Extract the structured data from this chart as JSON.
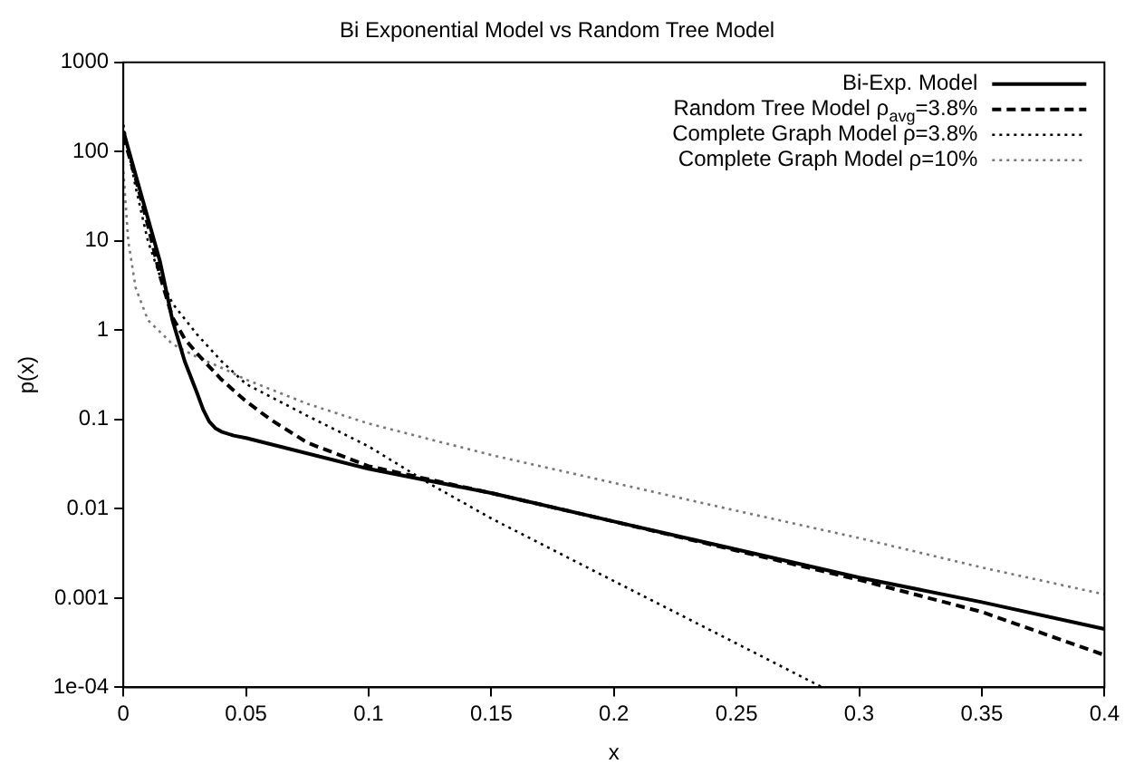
{
  "chart_data": {
    "type": "line",
    "title": "Bi Exponential Model vs Random Tree Model",
    "xlabel": "x",
    "ylabel": "p(x)",
    "log": "y",
    "grid": false,
    "legend": "top right",
    "marker": "none",
    "xlim": [
      0,
      0.4
    ],
    "xticks": [
      0,
      0.05,
      0.1,
      0.15,
      0.2,
      0.25,
      0.3,
      0.35,
      0.4
    ],
    "ylim": [
      0.0001,
      1000
    ],
    "yticks": [
      {
        "value": 0.0001,
        "label": "1e-04"
      },
      0.001,
      0.01,
      0.1,
      1,
      10,
      100,
      1000
    ],
    "series": [
      {
        "name": "Bi-Exp. Model",
        "color": "#000000",
        "line_style": "solid",
        "x": [
          0,
          0.005,
          0.01,
          0.015,
          0.02,
          0.025,
          0.03,
          0.0325,
          0.035,
          0.0375,
          0.04,
          0.045,
          0.05,
          0.1,
          0.15,
          0.2,
          0.25,
          0.3,
          0.35,
          0.4
        ],
        "values": [
          170,
          55,
          18,
          5.8,
          1.3,
          0.45,
          0.2,
          0.13,
          0.095,
          0.08,
          0.073,
          0.066,
          0.062,
          0.028,
          0.015,
          0.0072,
          0.0035,
          0.0017,
          0.0009,
          0.00045
        ]
      },
      {
        "name": "Random Tree Model ρ$_{avg}$=3.8%",
        "color": "#000000",
        "line_style": "dashed",
        "x": [
          0,
          0.005,
          0.01,
          0.015,
          0.02,
          0.025,
          0.03,
          0.04,
          0.05,
          0.06,
          0.075,
          0.1,
          0.15,
          0.2,
          0.25,
          0.3,
          0.35,
          0.4
        ],
        "values": [
          150,
          50,
          15,
          4,
          1.4,
          0.8,
          0.55,
          0.28,
          0.16,
          0.1,
          0.055,
          0.03,
          0.015,
          0.0072,
          0.0034,
          0.0016,
          0.0007,
          0.00023
        ]
      },
      {
        "name": "Complete Graph Model ρ=3.8%",
        "color": "#000000",
        "line_style": "dotted",
        "x": [
          0,
          0.005,
          0.01,
          0.015,
          0.02,
          0.03,
          0.04,
          0.05,
          0.075,
          0.1,
          0.125,
          0.15,
          0.2,
          0.25,
          0.285
        ],
        "values": [
          200,
          40,
          10,
          4,
          2,
          0.9,
          0.45,
          0.25,
          0.11,
          0.05,
          0.019,
          0.0078,
          0.00155,
          0.00031,
          0.0001
        ]
      },
      {
        "name": "Complete Graph Model ρ=10%",
        "color": "#777777",
        "line_style": "dotted",
        "x": [
          0,
          0.002,
          0.005,
          0.01,
          0.02,
          0.03,
          0.04,
          0.05,
          0.075,
          0.1,
          0.15,
          0.2,
          0.25,
          0.3,
          0.35,
          0.4
        ],
        "values": [
          60,
          10,
          3,
          1.3,
          0.7,
          0.5,
          0.38,
          0.28,
          0.15,
          0.09,
          0.04,
          0.0195,
          0.0095,
          0.0047,
          0.0022,
          0.0011
        ]
      }
    ]
  }
}
